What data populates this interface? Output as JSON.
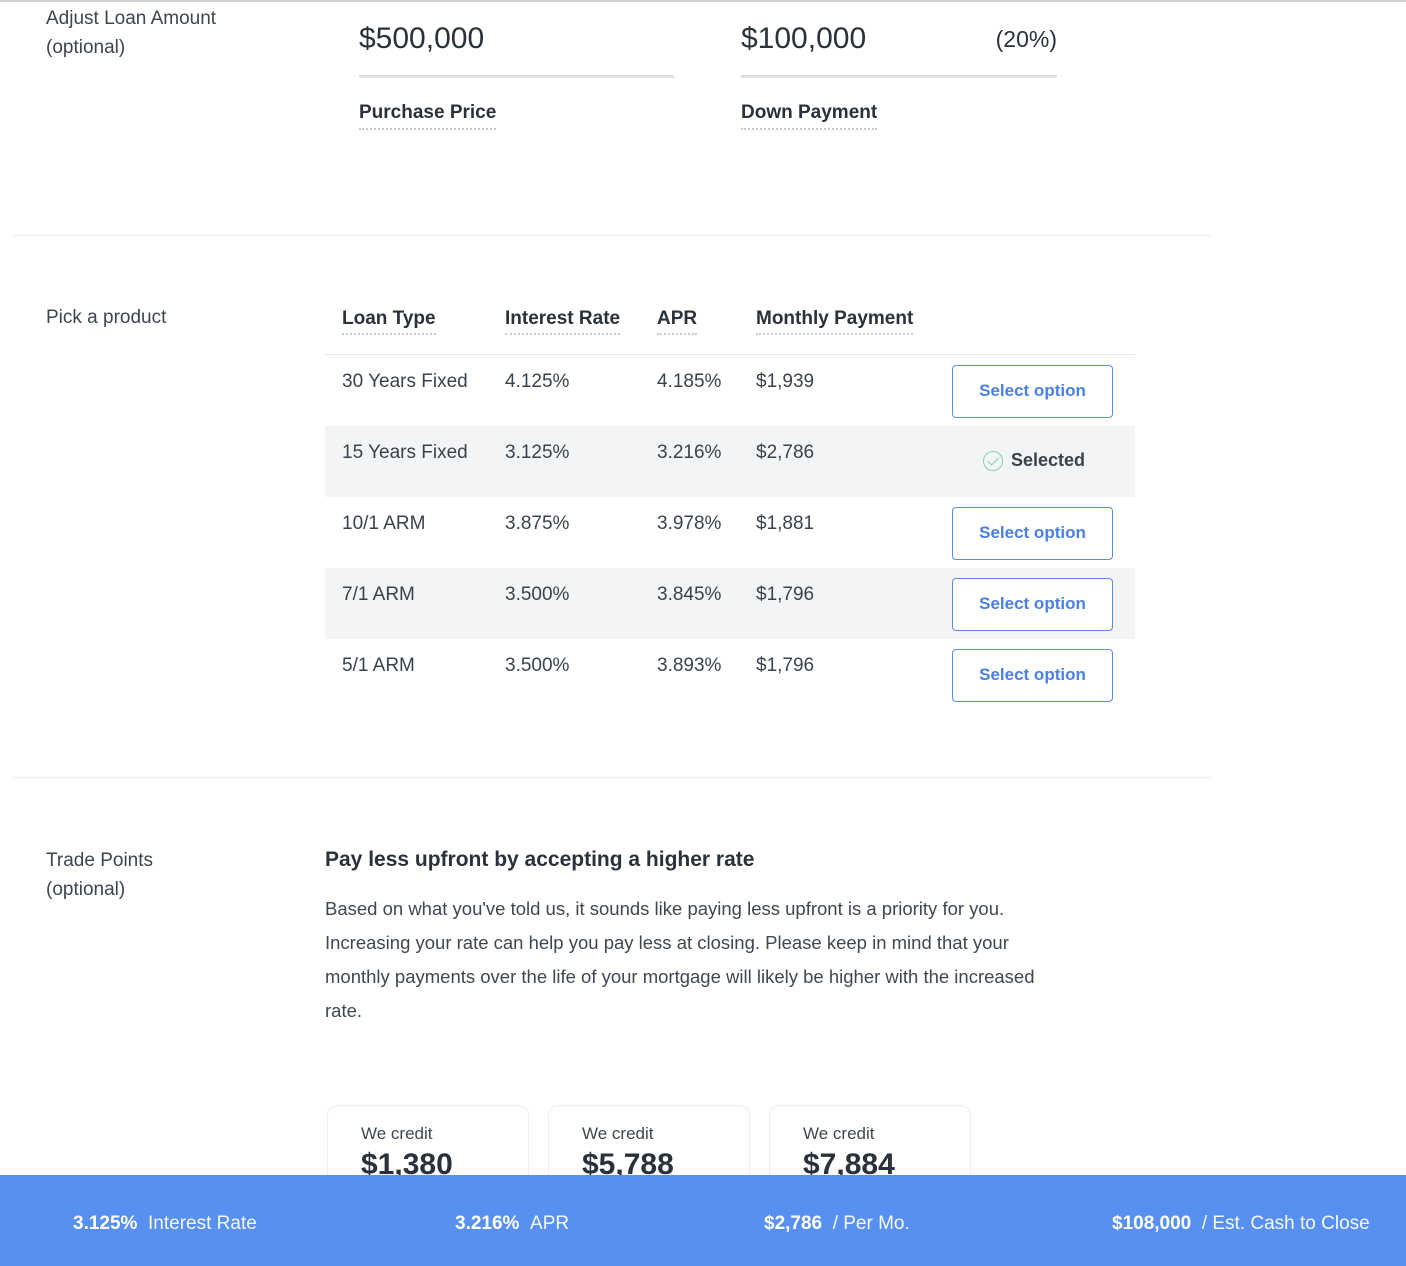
{
  "loan": {
    "label_line1": "Adjust Loan Amount",
    "label_line2": "(optional)",
    "purchase_price": "$500,000",
    "purchase_price_label": "Purchase Price",
    "down_payment": "$100,000",
    "down_payment_percent": "(20%)",
    "down_payment_label": "Down Payment"
  },
  "product": {
    "label": "Pick a product",
    "headers": [
      "Loan Type",
      "Interest Rate",
      "APR",
      "Monthly Payment"
    ],
    "rows": [
      {
        "type": "30 Years Fixed",
        "rate": "4.125%",
        "apr": "4.185%",
        "payment": "$1,939",
        "action": "Select option"
      },
      {
        "type": "15 Years Fixed",
        "rate": "3.125%",
        "apr": "3.216%",
        "payment": "$2,786",
        "action": "Selected"
      },
      {
        "type": "10/1 ARM",
        "rate": "3.875%",
        "apr": "3.978%",
        "payment": "$1,881",
        "action": "Select option"
      },
      {
        "type": "7/1 ARM",
        "rate": "3.500%",
        "apr": "3.845%",
        "payment": "$1,796",
        "action": "Select option"
      },
      {
        "type": "5/1 ARM",
        "rate": "3.500%",
        "apr": "3.893%",
        "payment": "$1,796",
        "action": "Select option"
      }
    ]
  },
  "trade": {
    "label_line1": "Trade Points",
    "label_line2": "(optional)",
    "heading": "Pay less upfront by accepting a higher rate",
    "body": "Based on what you've told us, it sounds like paying less upfront is a priority for you. Increasing your rate can help you pay less at closing. Please keep in mind that your monthly payments over the life of your mortgage will likely be higher with the increased rate.",
    "cards": [
      {
        "label": "We credit",
        "amount": "$1,380"
      },
      {
        "label": "We credit",
        "amount": "$5,788"
      },
      {
        "label": "We credit",
        "amount": "$7,884"
      }
    ]
  },
  "summary": {
    "rate": "3.125%",
    "rate_label": "Interest Rate",
    "apr": "3.216%",
    "apr_label": "APR",
    "payment": "$2,786",
    "payment_label": "/ Per Mo.",
    "cash": "$108,000",
    "cash_label": "/ Est. Cash to Close"
  },
  "colors": {
    "accent": "#5790f0",
    "button": "#4a80e6",
    "selected_check": "#7fd3b3"
  }
}
